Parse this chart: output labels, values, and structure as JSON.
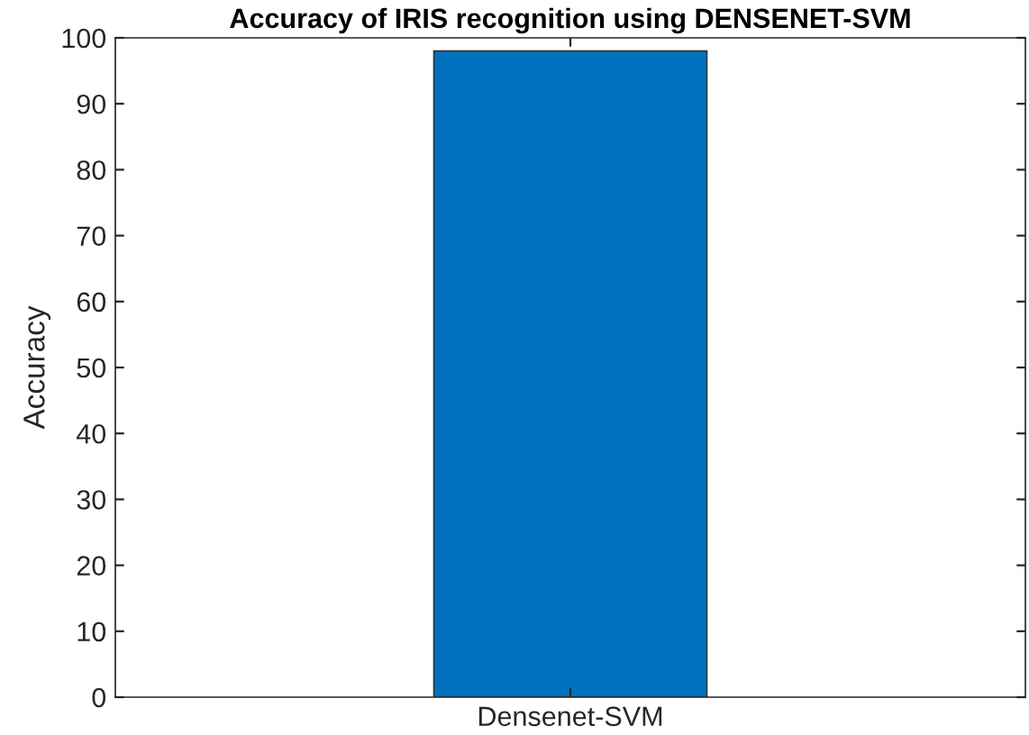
{
  "chart_data": {
    "type": "bar",
    "title": "Accuracy of IRIS recognition using DENSENET-SVM",
    "ylabel": "Accuracy",
    "categories": [
      "Densenet-SVM"
    ],
    "values": [
      98
    ],
    "color": "#0072bd",
    "ylim": [
      0,
      100
    ],
    "yticks": [
      0,
      10,
      20,
      30,
      40,
      50,
      60,
      70,
      80,
      90,
      100
    ],
    "grid": false
  }
}
